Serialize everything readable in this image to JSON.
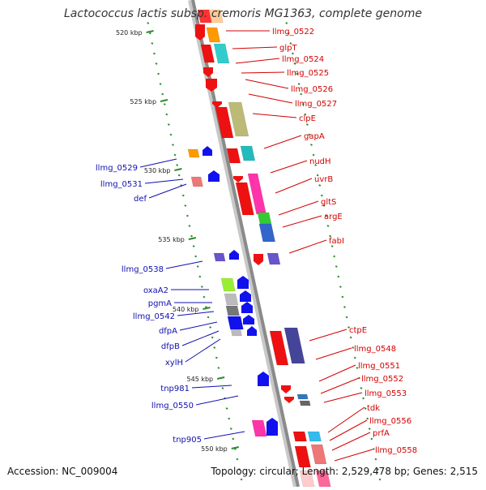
{
  "title": "Lactococcus lactis subsp. cremoris MG1363, complete genome",
  "footer": {
    "accession": "Accession: NC_009004",
    "summary": "Topology: circular; Length: 2,529,478 bp; Genes: 2,515"
  },
  "scale_labels": [
    "520 kbp",
    "525 kbp",
    "530 kbp",
    "535 kbp",
    "540 kbp",
    "545 kbp",
    "550 kbp"
  ],
  "colors": {
    "forward_label": "#d40000",
    "reverse_label": "#1010b0",
    "backbone": "#8a8a8a",
    "tick": "#2e8b2e"
  },
  "forward_genes": [
    "llmg_0522",
    "glpT",
    "llmg_0524",
    "llmg_0525",
    "llmg_0526",
    "llmg_0527",
    "clpE",
    "gapA",
    "nudH",
    "uvrB",
    "gltS",
    "argE",
    "fabI",
    "ctpE",
    "llmg_0548",
    "llmg_0551",
    "llmg_0552",
    "llmg_0553",
    "tdk",
    "llmg_0556",
    "prfA",
    "llmg_0558"
  ],
  "reverse_genes": [
    "llmg_0529",
    "llmg_0531",
    "def",
    "llmg_0538",
    "oxaA2",
    "pgmA",
    "llmg_0542",
    "dfpA",
    "dfpB",
    "xylH",
    "tnp981",
    "llmg_0550",
    "tnp905"
  ]
}
